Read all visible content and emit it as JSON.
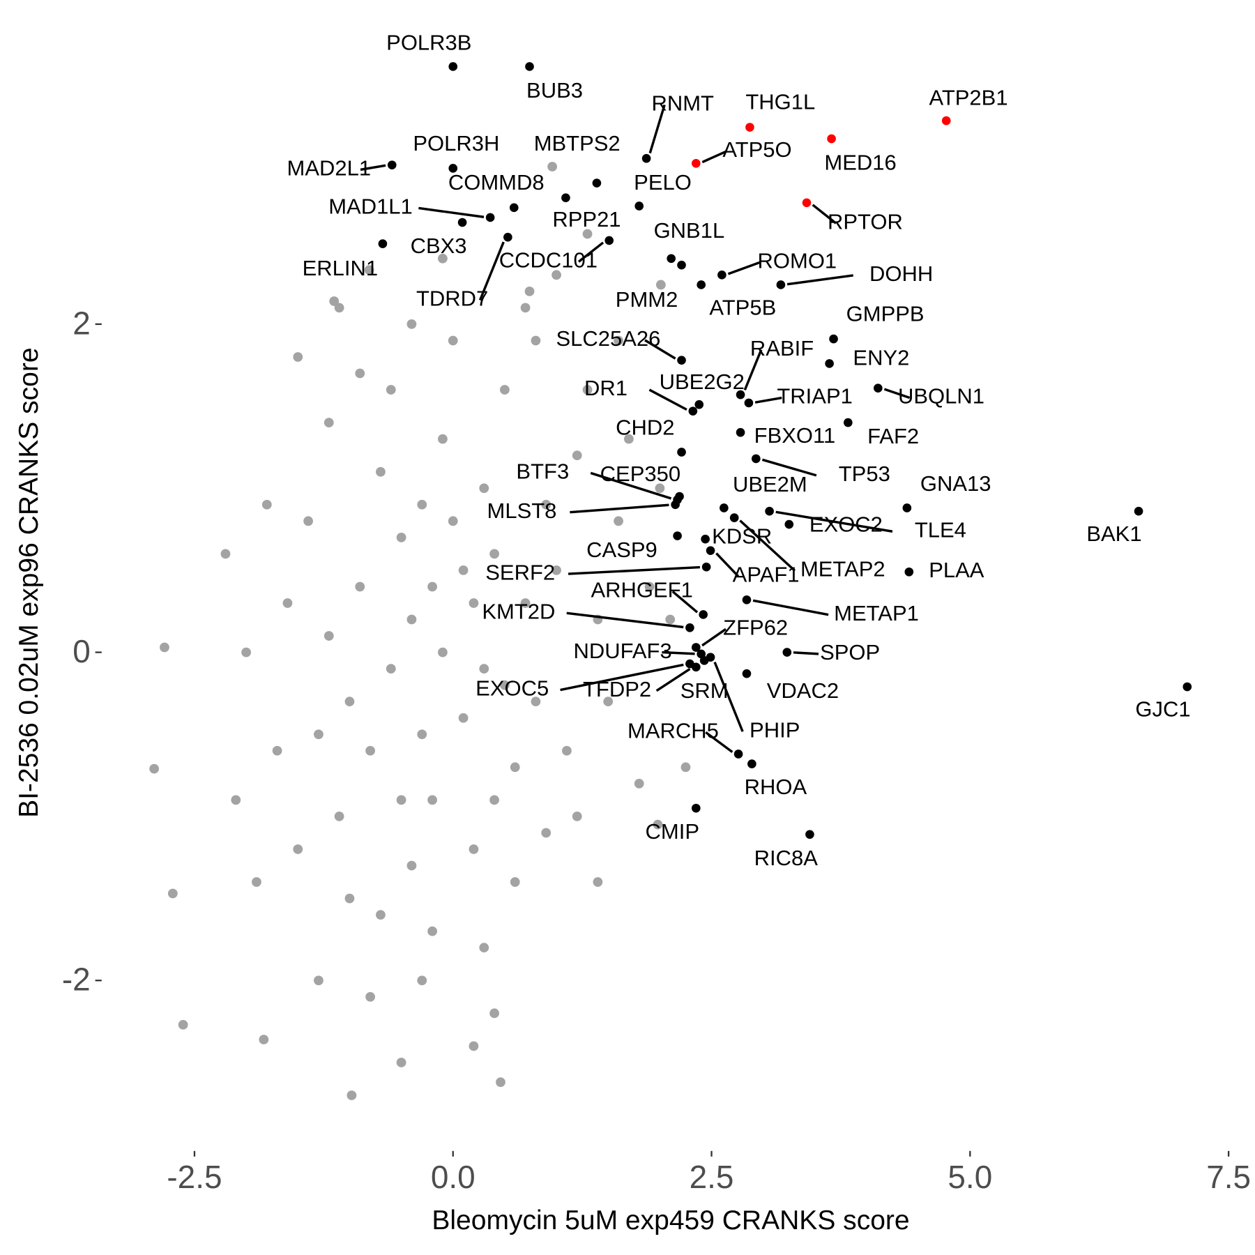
{
  "chart_data": {
    "type": "scatter",
    "x_label": "Bleomycin 5uM exp459 CRANKS score",
    "y_label": "BI-2536 0.02uM exp96 CRANKS score",
    "xlim": [
      -3.4,
      7.75
    ],
    "ylim": [
      -3.0,
      3.95
    ],
    "xticks": [
      -2.5,
      {
        "value": 0,
        "label": "0.0"
      },
      2.5,
      {
        "value": 5,
        "label": "5.0"
      },
      7.5
    ],
    "yticks": [
      -2,
      0,
      2
    ],
    "grid": false,
    "series": [
      {
        "color": "#a3a3a3",
        "x": [
          -0.1,
          0.2,
          -0.4,
          0.1,
          -0.3,
          0.4,
          -0.6,
          0.5,
          0.0,
          -0.2,
          0.3,
          -0.5,
          0.7,
          -0.8,
          0.6,
          -0.1,
          0.2,
          -0.9,
          0.9,
          -0.4,
          0.8,
          -1.0,
          0.1,
          -0.3,
          0.4,
          -0.7,
          1.0,
          -0.2,
          0.3,
          -0.5,
          -1.2,
          1.2,
          -1.1,
          1.1,
          -0.6,
          0.5,
          -0.2,
          0.6,
          -1.4,
          1.4,
          -1.3,
          1.3,
          -0.9,
          0.0,
          -0.7,
          0.9,
          -1.5,
          1.6,
          -1.6,
          0.8,
          -0.3,
          0.3,
          -1.2,
          1.5,
          -1.0,
          1.2,
          -0.4,
          0.7,
          -1.7,
          1.7,
          -1.8,
          1.9,
          -1.5,
          1.0,
          -0.8,
          0.4,
          -1.9,
          1.8,
          -2.0,
          2.0,
          -0.1,
          -1.3,
          1.4,
          -2.1,
          2.1,
          -2.2,
          0.2,
          -0.5,
          1.6,
          -1.1,
          -2.79,
          -2.89,
          -2.61,
          -0.98,
          0.46,
          -2.71,
          -1.83,
          -0.81,
          -1.15,
          0.74,
          2.01,
          2.25,
          1.98,
          1.3,
          0.96
        ],
        "values": [
          0.0,
          0.3,
          0.2,
          -0.4,
          -0.5,
          0.6,
          -0.1,
          -0.2,
          0.8,
          -0.9,
          1.0,
          0.7,
          0.3,
          -0.6,
          -0.7,
          1.3,
          -1.2,
          0.4,
          0.9,
          -1.3,
          -0.3,
          -0.3,
          0.5,
          0.9,
          -0.9,
          1.1,
          0.5,
          0.4,
          -0.1,
          -0.9,
          0.1,
          1.2,
          -1.0,
          -0.6,
          1.6,
          1.6,
          -1.7,
          -1.4,
          0.8,
          0.2,
          -0.5,
          1.6,
          1.7,
          1.9,
          -1.6,
          -1.1,
          -1.2,
          0.8,
          0.3,
          1.9,
          -2.0,
          -1.8,
          1.4,
          -0.3,
          -1.5,
          -1.0,
          2.0,
          2.1,
          -0.6,
          1.3,
          0.9,
          0.4,
          1.8,
          2.3,
          -2.1,
          -2.2,
          -1.4,
          -0.8,
          0.0,
          1.0,
          2.4,
          -2.0,
          -1.4,
          -0.9,
          0.2,
          0.6,
          -2.4,
          -2.5,
          1.9,
          2.1,
          0.03,
          -0.71,
          -2.27,
          -2.7,
          -2.62,
          -1.47,
          -2.36,
          2.33,
          2.14,
          2.2,
          2.24,
          -0.7,
          -1.05,
          2.55,
          2.96
        ]
      },
      {
        "color": "#000000",
        "labels": [
          "POLR3B",
          "BUB3",
          "RNMT",
          "MAD2L1",
          "POLR3H",
          "MBTPS2",
          "COMMD8",
          "PELO",
          "RPP21",
          "MAD1L1",
          "CBX3",
          "ERLIN1",
          "TDRD7",
          "CCDC101",
          "GNB1L",
          "PMM2",
          "ROMO1",
          "ATP5B",
          "DOHH",
          "GMPPB",
          "SLC25A26",
          "ENY2",
          "RABIF",
          "UBQLN1",
          "DR1",
          "UBE2G2",
          "TRIAP1",
          "FAF2",
          "FBXO11",
          "CHD2",
          "TP53",
          "BTF3",
          "CEP350",
          "MLST8",
          "UBE2M",
          "GNA13",
          "TLE4",
          "EXOC2",
          "BAK1",
          "KDSR",
          "CASP9",
          "METAP2",
          "APAF1",
          "PLAA",
          "SERF2",
          "METAP1",
          "ARHGEF1",
          "KMT2D",
          "ZFP62",
          "SPOP",
          "NDUFAF3",
          "EXOC5",
          "TFDP2",
          "SRM",
          "PHIP",
          "VDAC2",
          "GJC1",
          "MARCH5",
          "RHOA",
          "CMIP",
          "RIC8A"
        ],
        "x": [
          0.0,
          0.74,
          1.87,
          -0.59,
          0.0,
          1.39,
          0.59,
          1.8,
          1.09,
          0.36,
          0.09,
          -0.68,
          0.53,
          1.51,
          2.11,
          2.21,
          2.6,
          2.4,
          3.17,
          3.68,
          2.21,
          3.64,
          2.78,
          4.11,
          2.32,
          2.38,
          2.86,
          3.82,
          2.78,
          2.21,
          2.93,
          2.17,
          2.19,
          2.15,
          2.62,
          4.39,
          3.06,
          3.25,
          6.63,
          2.44,
          2.17,
          2.72,
          2.49,
          4.41,
          2.45,
          2.84,
          2.42,
          2.29,
          2.35,
          3.23,
          2.4,
          2.29,
          2.35,
          2.43,
          2.49,
          2.84,
          7.1,
          2.76,
          2.89,
          2.35,
          3.45
        ],
        "values": [
          3.57,
          3.57,
          3.01,
          2.97,
          2.95,
          2.86,
          2.71,
          2.72,
          2.77,
          2.65,
          2.62,
          2.49,
          2.53,
          2.51,
          2.4,
          2.36,
          2.3,
          2.24,
          2.24,
          1.91,
          1.78,
          1.76,
          1.57,
          1.61,
          1.47,
          1.51,
          1.52,
          1.4,
          1.34,
          1.22,
          1.18,
          0.93,
          0.95,
          0.9,
          0.88,
          0.88,
          0.86,
          0.78,
          0.86,
          0.69,
          0.71,
          0.82,
          0.62,
          0.49,
          0.52,
          0.32,
          0.23,
          0.15,
          0.03,
          0,
          -0.01,
          -0.07,
          -0.09,
          -0.05,
          -0.03,
          -0.13,
          -0.21,
          -0.62,
          -0.68,
          -0.95,
          -1.11
        ]
      },
      {
        "color": "#ff0000",
        "labels": [
          "THG1L",
          "ATP2B1",
          "MED16",
          "ATP5O",
          "RPTOR"
        ],
        "x": [
          2.87,
          4.77,
          3.66,
          2.35,
          3.42
        ],
        "values": [
          3.2,
          3.24,
          3.13,
          2.98,
          2.74
        ]
      }
    ]
  }
}
